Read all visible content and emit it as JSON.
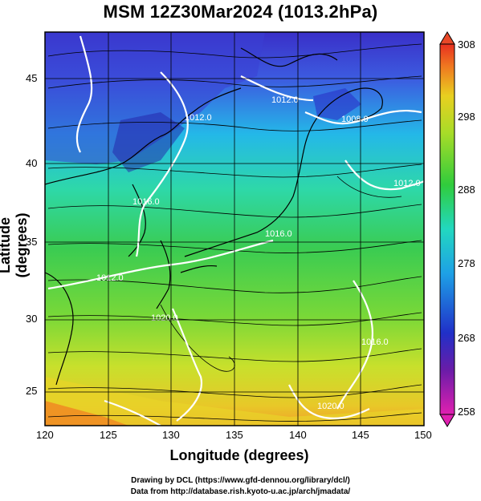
{
  "title": "MSM 12Z30Mar2024 (1013.2hPa)",
  "axes": {
    "xlabel": "Longitude (degrees)",
    "ylabel": "Latitude  (degrees)",
    "xticks": [
      "120",
      "125",
      "130",
      "135",
      "140",
      "145",
      "150"
    ],
    "yticks": [
      "25",
      "30",
      "35",
      "40",
      "45"
    ],
    "xrange": [
      120,
      150
    ],
    "yrange": [
      22.4,
      47.6
    ]
  },
  "colorbar": {
    "ticks": [
      "258",
      "268",
      "278",
      "288",
      "298",
      "308"
    ],
    "range": [
      258,
      308
    ]
  },
  "contours": [
    "1012.0",
    "1008.0",
    "1012.0",
    "1016.0",
    "1020.0",
    "1016.0",
    "1016.0",
    "1012.0",
    "1012.0",
    "1020.0"
  ],
  "credits": {
    "line1": "Drawing by DCL (https://www.gfd-dennou.org/library/dcl/)",
    "line2": "Data from http://database.rish.kyoto-u.ac.jp/arch/jmadata/"
  },
  "colors": {
    "cold": "#2b2bd6",
    "cool": "#20c8e0",
    "mild": "#3ccc3c",
    "warm": "#e8e020",
    "hot": "#f08020"
  }
}
